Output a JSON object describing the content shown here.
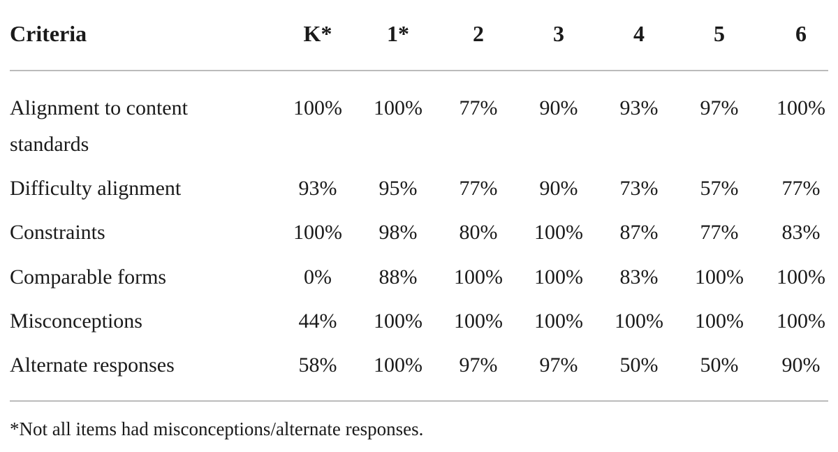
{
  "table": {
    "header": [
      "Criteria",
      "K*",
      "1*",
      "2",
      "3",
      "4",
      "5",
      "6"
    ],
    "rows": [
      [
        "Alignment to content standards",
        "100%",
        "100%",
        "77%",
        "90%",
        "93%",
        "97%",
        "100%"
      ],
      [
        "Difficulty alignment",
        "93%",
        "95%",
        "77%",
        "90%",
        "73%",
        "57%",
        "77%"
      ],
      [
        "Constraints",
        "100%",
        "98%",
        "80%",
        "100%",
        "87%",
        "77%",
        "83%"
      ],
      [
        "Comparable forms",
        "0%",
        "88%",
        "100%",
        "100%",
        "83%",
        "100%",
        "100%"
      ],
      [
        "Misconceptions",
        "44%",
        "100%",
        "100%",
        "100%",
        "100%",
        "100%",
        "100%"
      ],
      [
        "Alternate responses",
        "58%",
        "100%",
        "97%",
        "97%",
        "50%",
        "50%",
        "90%"
      ]
    ]
  },
  "footnote": "*Not all items had misconceptions/alternate responses."
}
